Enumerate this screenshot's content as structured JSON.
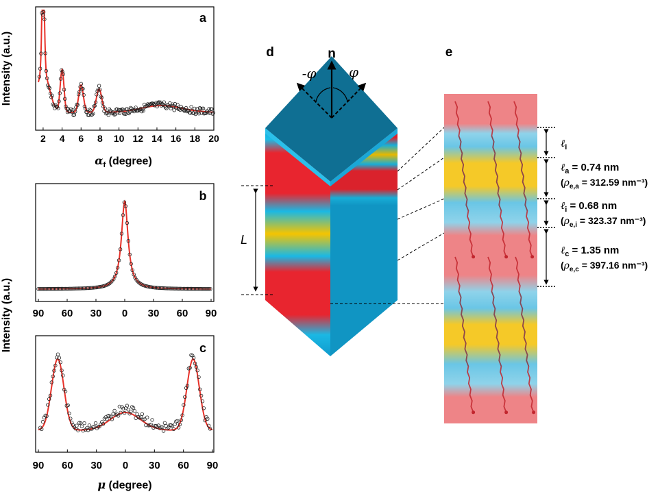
{
  "panels": {
    "a": {
      "letter": "a",
      "ylabel": "Intensity (a.u.)",
      "xlabel_symbol": "α",
      "xlabel_sub": "f",
      "xlabel_rest": " (degree)",
      "ticks": [
        "2",
        "4",
        "6",
        "8",
        "10",
        "12",
        "14",
        "16",
        "18",
        "20"
      ]
    },
    "b": {
      "letter": "b",
      "ticks": [
        "90",
        "60",
        "30",
        "0",
        "30",
        "60",
        "90"
      ]
    },
    "c": {
      "letter": "c",
      "ticks": [
        "90",
        "60",
        "30",
        "0",
        "30",
        "60",
        "90"
      ],
      "xlabel_symbol": "μ",
      "xlabel_rest": " (degree)"
    },
    "bc_ylabel": "Intensity (a.u.)",
    "d": {
      "letter": "d",
      "n_label": "n",
      "phi_left": "-φ",
      "phi_right": "φ",
      "period_label": "L"
    },
    "e": {
      "letter": "e",
      "annotations": [
        {
          "ell_sub": "i",
          "value": "",
          "rho_sub": "",
          "rho_value": ""
        },
        {
          "ell_sub": "a",
          "value": " = 0.74 nm",
          "rho_sub": "e,a",
          "rho_value": " = 312.59 nm⁻³)"
        },
        {
          "ell_sub": "i",
          "value": " = 0.68 nm",
          "rho_sub": "e,i",
          "rho_value": " = 323.37 nm⁻³)"
        },
        {
          "ell_sub": "c",
          "value": " = 1.35 nm",
          "rho_sub": "e,c",
          "rho_value": " = 397.16 nm⁻³)"
        }
      ]
    }
  },
  "colors": {
    "fit_line": "#e8322a",
    "markers": "#222222",
    "red_band": "#e8252f",
    "yellow_band": "#f5c400",
    "cyan_band": "#1ab8e4",
    "top_face": "#0f6f93",
    "strip_bg": "#ee8487"
  }
}
